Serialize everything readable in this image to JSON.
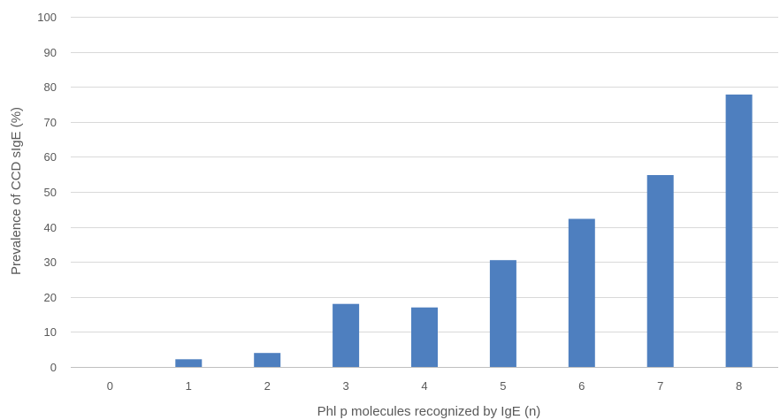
{
  "chart_data": {
    "type": "bar",
    "title": "",
    "xlabel": "Phl p molecules recognized by IgE (n)",
    "ylabel": "Prevalence of CCD sIgE (%)",
    "categories": [
      "0",
      "1",
      "2",
      "3",
      "4",
      "5",
      "6",
      "7",
      "8"
    ],
    "values": [
      0,
      2.2,
      4.0,
      18.0,
      17.0,
      30.5,
      42.3,
      54.8,
      77.8
    ],
    "ylim": [
      0,
      100
    ],
    "yticks": [
      0,
      10,
      20,
      30,
      40,
      50,
      60,
      70,
      80,
      90,
      100
    ],
    "grid": true,
    "legend": "none",
    "bar_color": "#4e7fbf"
  }
}
